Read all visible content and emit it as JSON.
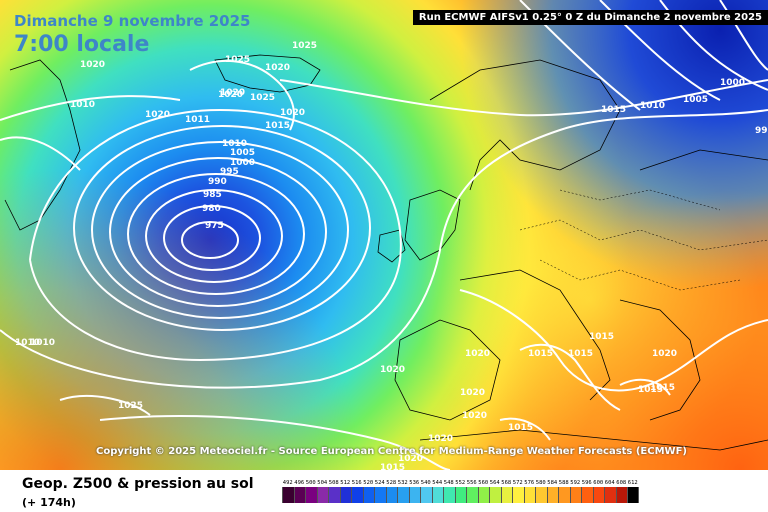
{
  "header": {
    "date": "Dimanche 9 novembre 2025",
    "time": "7:00 locale",
    "run": "Run ECMWF AIFSv1 0.25° 0 Z du Dimanche 2 novembre 2025"
  },
  "copyright": "Copyright © 2025 Meteociel.fr - Source European Centre for Medium-Range Weather Forecasts (ECMWF)",
  "footer": {
    "title": "Geop. Z500 & pression au sol",
    "subtitle": "(+ 174h)"
  },
  "legend": {
    "ticks": [
      "492",
      "496",
      "500",
      "504",
      "508",
      "512",
      "516",
      "520",
      "524",
      "528",
      "532",
      "536",
      "540",
      "544",
      "548",
      "552",
      "556",
      "560",
      "564",
      "568",
      "572",
      "576",
      "580",
      "584",
      "588",
      "592",
      "596",
      "600",
      "604",
      "608",
      "612"
    ],
    "colors": [
      "#3a0030",
      "#5a0054",
      "#7a0080",
      "#8a2aa8",
      "#5a30c8",
      "#2030d8",
      "#1040e8",
      "#1060f0",
      "#1478f4",
      "#1c8cf0",
      "#28a0f0",
      "#3cb4f0",
      "#50c8f0",
      "#50dcd8",
      "#40e8b0",
      "#40ec80",
      "#60f060",
      "#90f048",
      "#c0f040",
      "#e8f040",
      "#fff040",
      "#ffe038",
      "#ffc830",
      "#ffb028",
      "#ff9820",
      "#ff8018",
      "#ff6010",
      "#f84810",
      "#e03010",
      "#b81808",
      "#000000"
    ]
  },
  "isobar_labels": [
    "1020",
    "1025",
    "1020",
    "1010",
    "1020",
    "1011",
    "1020",
    "1025",
    "1020",
    "1015",
    "1020",
    "1025",
    "1010",
    "1005",
    "1000",
    "995",
    "990",
    "985",
    "980",
    "975",
    "1015",
    "1010",
    "1005",
    "1000",
    "995",
    "1010",
    "1020",
    "1020",
    "1015",
    "1015",
    "1015",
    "1020",
    "1020",
    "1015",
    "1020",
    "1015",
    "1025",
    "1020",
    "1015",
    "1020",
    "1015",
    "1010"
  ],
  "colors": {
    "title": "#3e86c8",
    "isobar": "#ffffff",
    "coast": "#000000"
  }
}
